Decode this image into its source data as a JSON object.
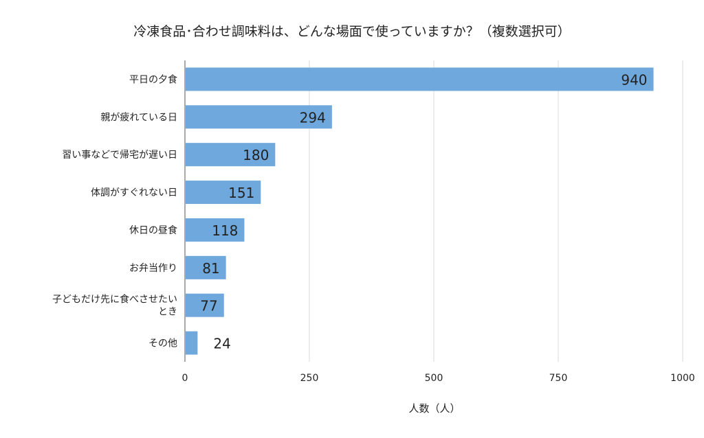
{
  "chart_data": {
    "type": "bar",
    "orientation": "horizontal",
    "title": "冷凍食品･合わせ調味料は、どんな場面で使っていますか？（複数選択可）",
    "xlabel": "人数（人）",
    "ylabel": "",
    "categories": [
      "平日の夕食",
      "親が疲れている日",
      "習い事などで帰宅が遅い日",
      "体調がすぐれない日",
      "休日の昼食",
      "お弁当作り",
      "子どもだけ先に食べさせたいとき",
      "その他"
    ],
    "category_lines": [
      [
        "平日の夕食"
      ],
      [
        "親が疲れている日"
      ],
      [
        "習い事などで帰宅が遅い日"
      ],
      [
        "体調がすぐれない日"
      ],
      [
        "休日の昼食"
      ],
      [
        "お弁当作り"
      ],
      [
        "子どもだけ先に食べさせたい",
        "とき"
      ],
      [
        "その他"
      ]
    ],
    "values": [
      940,
      294,
      180,
      151,
      118,
      81,
      77,
      24
    ],
    "xlim": [
      0,
      1000
    ],
    "xticks": [
      "0",
      "250",
      "500",
      "750",
      "1000"
    ],
    "grid": true,
    "legend": "none",
    "colors": {
      "bar": "#6fa8dc",
      "grid": "#d9d9d9",
      "axis": "#555555",
      "text": "#222222"
    }
  }
}
